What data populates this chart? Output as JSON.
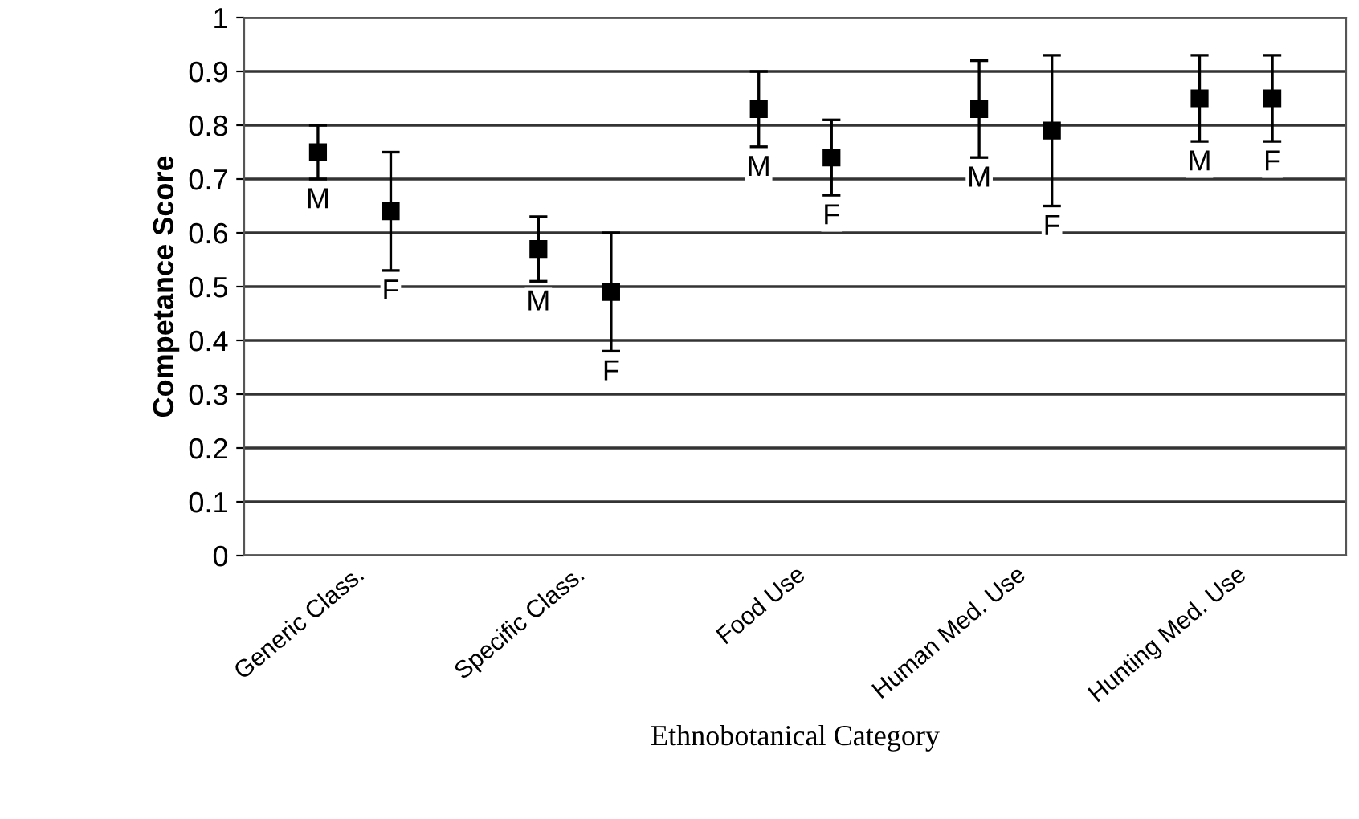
{
  "chart_data": {
    "type": "scatter",
    "xlabel": "Ethnobotanical Category",
    "ylabel": "Competance Score",
    "categories": [
      "Generic Class.",
      "Specific Class.",
      "Food Use",
      "Human Med. Use",
      "Hunting Med. Use"
    ],
    "series": [
      {
        "name": "M",
        "color": "#000000",
        "values": [
          0.75,
          0.57,
          0.83,
          0.83,
          0.85
        ],
        "errors": [
          0.05,
          0.06,
          0.07,
          0.09,
          0.08
        ]
      },
      {
        "name": "F",
        "color": "#000000",
        "values": [
          0.64,
          0.49,
          0.74,
          0.79,
          0.85
        ],
        "errors": [
          0.11,
          0.11,
          0.07,
          0.14,
          0.08
        ]
      }
    ],
    "ylim": [
      0,
      1
    ],
    "yticks": [
      0,
      0.1,
      0.2,
      0.3,
      0.4,
      0.5,
      0.6,
      0.7,
      0.8,
      0.9,
      1
    ],
    "grid": "y",
    "marker": "square",
    "legend": false
  }
}
